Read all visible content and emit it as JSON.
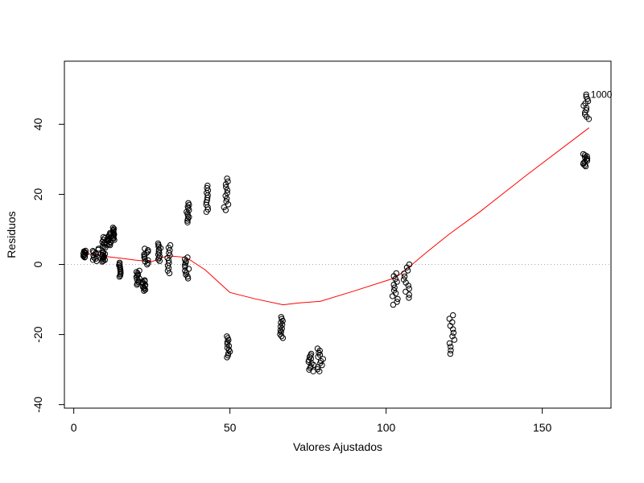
{
  "chart_data": {
    "type": "scatter",
    "title": "",
    "xlabel": "Valores Ajustados",
    "ylabel": "Residuos",
    "xlim": [
      -3,
      172
    ],
    "ylim": [
      -41,
      58
    ],
    "x_ticks": [
      0,
      50,
      100,
      150
    ],
    "y_ticks": [
      -40,
      -20,
      0,
      20,
      40
    ],
    "x_tick_labels": [
      "0",
      "50",
      "100",
      "150"
    ],
    "y_tick_labels": [
      "-40",
      "-20",
      "0",
      "20",
      "40"
    ],
    "reference_line": {
      "y": 0,
      "color": "#aaaaaa",
      "style": "dotted"
    },
    "point_label": "1000",
    "point_label_anchor": {
      "x": 165.5,
      "y": 47.6
    },
    "point_groups": [
      {
        "x": [
          3,
          4
        ],
        "y": [
          2.0,
          3.9
        ]
      },
      {
        "x": [
          6,
          8
        ],
        "y": [
          1.0,
          4.5
        ]
      },
      {
        "x": [
          9,
          10
        ],
        "y": [
          0.8,
          3.5
        ]
      },
      {
        "x": [
          9,
          11
        ],
        "y": [
          4.8,
          7.8
        ]
      },
      {
        "x": [
          11,
          12
        ],
        "y": [
          5.5,
          9.0
        ]
      },
      {
        "x": [
          12.5,
          13
        ],
        "y": [
          7.0,
          10.5
        ]
      },
      {
        "x": [
          14.5,
          15
        ],
        "y": [
          -3.5,
          0.5
        ]
      },
      {
        "x": [
          20,
          21
        ],
        "y": [
          -5.8,
          -1.8
        ]
      },
      {
        "x": [
          22,
          23
        ],
        "y": [
          -7.5,
          -4.5
        ]
      },
      {
        "x": [
          22.5,
          24
        ],
        "y": [
          0.0,
          4.5
        ]
      },
      {
        "x": [
          27,
          28
        ],
        "y": [
          1.0,
          6.0
        ]
      },
      {
        "x": [
          30,
          31
        ],
        "y": [
          -2.5,
          5.5
        ]
      },
      {
        "x": [
          35.5,
          37
        ],
        "y": [
          -4.0,
          2.0
        ]
      },
      {
        "x": [
          36,
          37
        ],
        "y": [
          12.0,
          17.5
        ]
      },
      {
        "x": [
          42,
          43
        ],
        "y": [
          15.0,
          22.5
        ]
      },
      {
        "x": [
          48,
          49.5
        ],
        "y": [
          15.5,
          24.5
        ]
      },
      {
        "x": [
          49,
          50
        ],
        "y": [
          -26.5,
          -20.5
        ]
      },
      {
        "x": [
          66,
          67
        ],
        "y": [
          -21.0,
          -15.0
        ]
      },
      {
        "x": [
          75,
          77
        ],
        "y": [
          -30.5,
          -25.5
        ]
      },
      {
        "x": [
          78,
          80
        ],
        "y": [
          -30.5,
          -24.0
        ]
      },
      {
        "x": [
          102,
          104
        ],
        "y": [
          -11.5,
          -2.5
        ]
      },
      {
        "x": [
          105.5,
          107.5
        ],
        "y": [
          -9.5,
          0.0
        ]
      },
      {
        "x": [
          120,
          122
        ],
        "y": [
          -25.5,
          -14.5
        ]
      },
      {
        "x": [
          163,
          165
        ],
        "y": [
          41.5,
          48.5
        ]
      },
      {
        "x": [
          163,
          164.5
        ],
        "y": [
          28.0,
          31.5
        ]
      }
    ],
    "smooth_line": {
      "color": "#ff0000",
      "x": [
        3,
        6,
        10,
        15,
        20,
        25,
        30,
        36,
        42,
        50,
        58,
        67,
        72,
        79,
        90,
        103,
        107,
        113,
        120,
        130,
        145,
        165
      ],
      "y": [
        3.2,
        2.8,
        2.3,
        1.8,
        1.2,
        0.8,
        2.5,
        2.0,
        -1.5,
        -8.0,
        -9.8,
        -11.5,
        -11.0,
        -10.5,
        -7.5,
        -3.8,
        -1.0,
        3.5,
        8.5,
        15.0,
        25.5,
        39.0
      ]
    }
  }
}
